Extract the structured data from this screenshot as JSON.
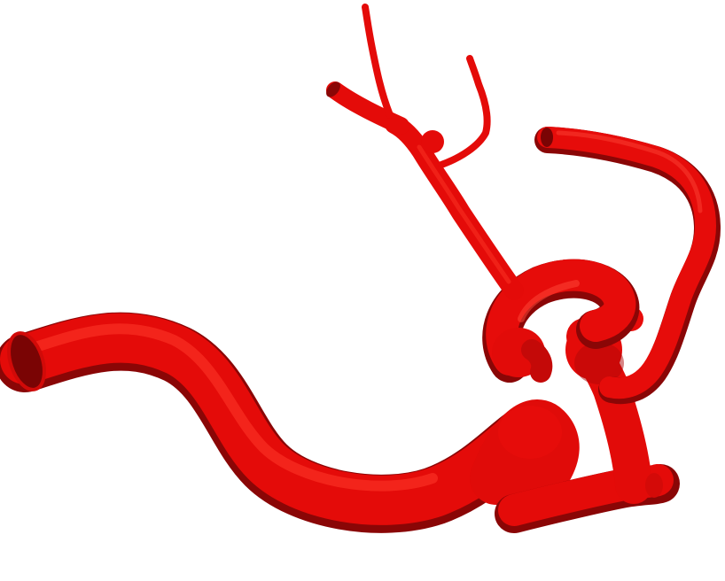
{
  "scene": {
    "background_color": "#ffffff",
    "vessel_color": "#e80c0a",
    "vessel_highlight_color": "#ff3a2a",
    "vessel_shadow_color": "#8a0606",
    "vessel_lumen_color": "#7a0404",
    "subject": "3d-vascular-model"
  }
}
